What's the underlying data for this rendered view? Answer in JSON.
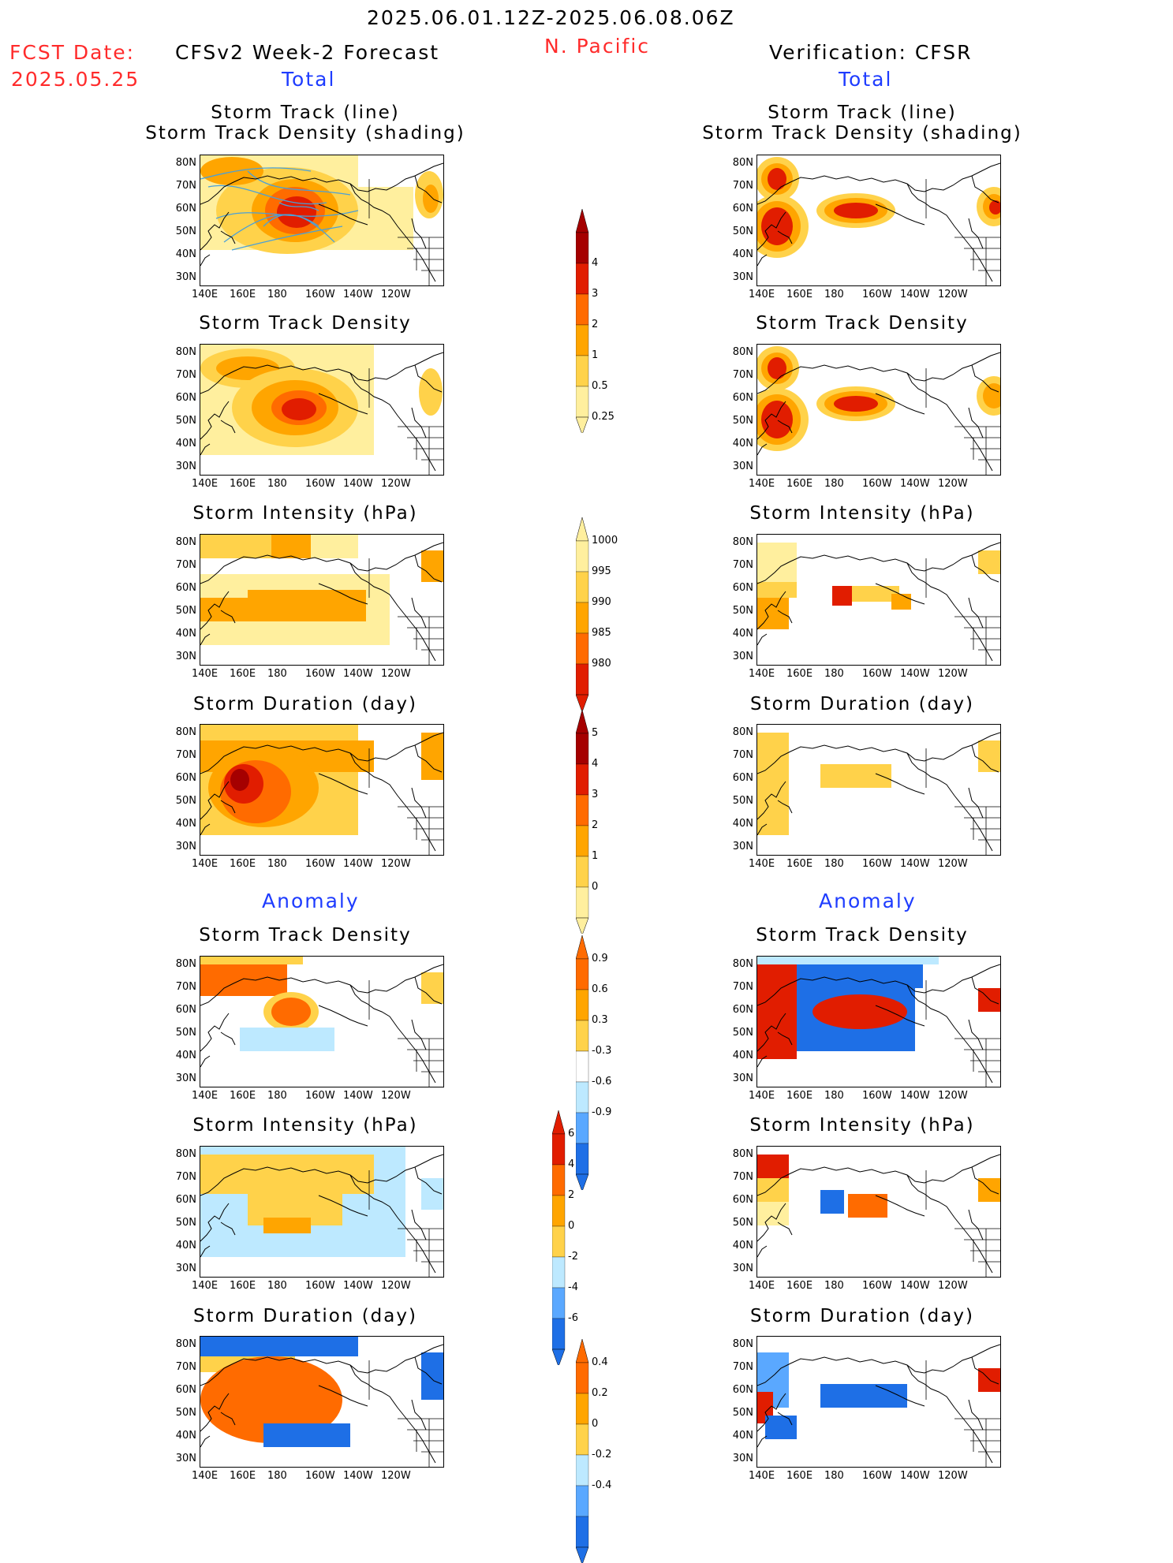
{
  "header": {
    "date_range": "2025.06.01.12Z-2025.06.08.06Z",
    "region": "N. Pacific",
    "fcst_date_label": "FCST Date:",
    "fcst_date_value": "2025.05.25",
    "left_title": "CFSv2 Week-2 Forecast",
    "right_title": "Verification: CFSR",
    "total_label": "Total",
    "anomaly_label": "Anomaly"
  },
  "panel_titles": {
    "track_line": "Storm Track (line)",
    "track_density_shading": "Storm Track Density (shading)",
    "track_density": "Storm Track Density",
    "intensity": "Storm Intensity (hPa)",
    "duration": "Storm Duration (day)"
  },
  "axes": {
    "lat_ticks": [
      "80N",
      "70N",
      "60N",
      "50N",
      "40N",
      "30N"
    ],
    "lon_ticks": [
      "140E",
      "160E",
      "180",
      "160W",
      "140W",
      "120W"
    ]
  },
  "colorbars": {
    "density": [
      "4",
      "3",
      "2",
      "1",
      "0.5",
      "0.25"
    ],
    "intensity": [
      "1000",
      "995",
      "990",
      "985",
      "980"
    ],
    "duration": [
      "5",
      "4",
      "3",
      "2",
      "1",
      "0"
    ],
    "density_anom": [
      "0.9",
      "0.6",
      "0.3",
      "-0.3",
      "-0.6",
      "-0.9"
    ],
    "intensity_anom": [
      "6",
      "4",
      "2",
      "0",
      "-2",
      "-4",
      "-6"
    ],
    "duration_anom": [
      "0.4",
      "0.2",
      "0",
      "-0.2",
      "-0.4"
    ]
  },
  "colors": {
    "lightyellow": "#ffef9e",
    "yellow": "#ffd24a",
    "orange": "#ffa500",
    "darkorange": "#ff6b00",
    "red": "#e11d00",
    "darkred": "#a50000",
    "lightblue": "#bde9ff",
    "blue": "#5aa8ff",
    "darkblue": "#1e6fe6",
    "track_line": "#4aa0d8"
  }
}
